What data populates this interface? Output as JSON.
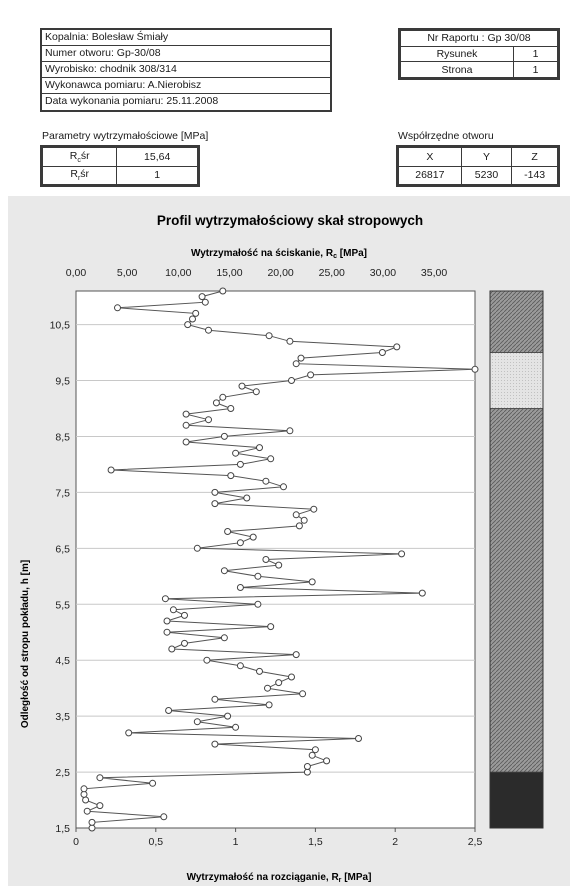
{
  "header": {
    "info_rows": [
      "Kopalnia: Bolesław Śmiały",
      "Numer otworu: Gp-30/08",
      "Wyrobisko: chodnik 308/314",
      "Wykonawca pomiaru: A.Nierobisz",
      "Data wykonania pomiaru: 25.11.2008"
    ],
    "report": {
      "title": "Nr Raportu : Gp 30/08",
      "rows": [
        {
          "label": "Rysunek",
          "value": "1"
        },
        {
          "label": "Strona",
          "value": "1"
        }
      ]
    },
    "params": {
      "caption": "Parametry wytrzymałościowe [MPa]",
      "rows": [
        {
          "symbol": "R",
          "sub": "c",
          "suffix": "śr",
          "value": "15,64"
        },
        {
          "symbol": "R",
          "sub": "r",
          "suffix": "śr",
          "value": "1"
        }
      ]
    },
    "coords": {
      "caption": "Współrzędne otworu",
      "headers": [
        "X",
        "Y",
        "Z"
      ],
      "values": [
        "26817",
        "5230",
        "-143"
      ]
    }
  },
  "chart_data": {
    "type": "line",
    "title": "Profil wytrzymałościowy skał stropowych",
    "top_axis": {
      "label": "Wytrzymałość na ściskanie, R",
      "label_sub": "c",
      "label_unit": "[MPa]",
      "range": [
        0,
        39
      ],
      "ticks": [
        "0,00",
        "5,00",
        "10,00",
        "15,00",
        "20,00",
        "25,00",
        "30,00",
        "35,00"
      ]
    },
    "bottom_axis": {
      "label": "Wytrzymałość na rozciąganie, R",
      "label_sub": "r",
      "label_unit": "[MPa]",
      "range": [
        0,
        2.5
      ],
      "ticks": [
        "0",
        "0,5",
        "1",
        "1,5",
        "2",
        "2,5"
      ]
    },
    "y_axis": {
      "label": "Odległość od stropu pokładu, h [m]",
      "range": [
        1.5,
        11.1
      ],
      "ticks": [
        "1,5",
        "2,5",
        "3,5",
        "4,5",
        "5,5",
        "6,5",
        "7,5",
        "8,5",
        "9,5",
        "10,5"
      ]
    },
    "grid": true,
    "series": [
      {
        "unit": "MPa (R_r, bottom axis)",
        "points": [
          [
            0.1,
            1.5
          ],
          [
            0.1,
            1.6
          ],
          [
            0.55,
            1.7
          ],
          [
            0.07,
            1.8
          ],
          [
            0.15,
            1.9
          ],
          [
            0.06,
            2.0
          ],
          [
            0.05,
            2.1
          ],
          [
            0.05,
            2.2
          ],
          [
            0.48,
            2.3
          ],
          [
            0.15,
            2.4
          ],
          [
            1.45,
            2.5
          ],
          [
            1.45,
            2.6
          ],
          [
            1.57,
            2.7
          ],
          [
            1.48,
            2.8
          ],
          [
            1.5,
            2.9
          ],
          [
            0.87,
            3.0
          ],
          [
            1.77,
            3.1
          ],
          [
            0.33,
            3.2
          ],
          [
            1.0,
            3.3
          ],
          [
            0.76,
            3.4
          ],
          [
            0.95,
            3.5
          ],
          [
            0.58,
            3.6
          ],
          [
            1.21,
            3.7
          ],
          [
            0.87,
            3.8
          ],
          [
            1.42,
            3.9
          ],
          [
            1.2,
            4.0
          ],
          [
            1.27,
            4.1
          ],
          [
            1.35,
            4.2
          ],
          [
            1.15,
            4.3
          ],
          [
            1.03,
            4.4
          ],
          [
            0.82,
            4.5
          ],
          [
            1.38,
            4.6
          ],
          [
            0.6,
            4.7
          ],
          [
            0.68,
            4.8
          ],
          [
            0.93,
            4.9
          ],
          [
            0.57,
            5.0
          ],
          [
            1.22,
            5.1
          ],
          [
            0.57,
            5.2
          ],
          [
            0.68,
            5.3
          ],
          [
            0.61,
            5.4
          ],
          [
            1.14,
            5.5
          ],
          [
            0.56,
            5.6
          ],
          [
            2.17,
            5.7
          ],
          [
            1.03,
            5.8
          ],
          [
            1.48,
            5.9
          ],
          [
            1.14,
            6.0
          ],
          [
            0.93,
            6.1
          ],
          [
            1.27,
            6.2
          ],
          [
            1.19,
            6.3
          ],
          [
            2.04,
            6.4
          ],
          [
            0.76,
            6.5
          ],
          [
            1.03,
            6.6
          ],
          [
            1.11,
            6.7
          ],
          [
            0.95,
            6.8
          ],
          [
            1.4,
            6.9
          ],
          [
            1.43,
            7.0
          ],
          [
            1.38,
            7.1
          ],
          [
            1.49,
            7.2
          ],
          [
            0.87,
            7.3
          ],
          [
            1.07,
            7.4
          ],
          [
            0.87,
            7.5
          ],
          [
            1.3,
            7.6
          ],
          [
            1.19,
            7.7
          ],
          [
            0.97,
            7.8
          ],
          [
            0.22,
            7.9
          ],
          [
            1.03,
            8.0
          ],
          [
            1.22,
            8.1
          ],
          [
            1.0,
            8.2
          ],
          [
            1.15,
            8.3
          ],
          [
            0.69,
            8.4
          ],
          [
            0.93,
            8.5
          ],
          [
            1.34,
            8.6
          ],
          [
            0.69,
            8.7
          ],
          [
            0.83,
            8.8
          ],
          [
            0.69,
            8.9
          ],
          [
            0.97,
            9.0
          ],
          [
            0.88,
            9.1
          ],
          [
            0.92,
            9.2
          ],
          [
            1.13,
            9.3
          ],
          [
            1.04,
            9.4
          ],
          [
            1.35,
            9.5
          ],
          [
            1.47,
            9.6
          ],
          [
            2.5,
            9.7
          ],
          [
            1.38,
            9.8
          ],
          [
            1.41,
            9.9
          ],
          [
            1.92,
            10.0
          ],
          [
            2.01,
            10.1
          ],
          [
            1.34,
            10.2
          ],
          [
            1.21,
            10.3
          ],
          [
            0.83,
            10.4
          ],
          [
            0.7,
            10.5
          ],
          [
            0.73,
            10.6
          ],
          [
            0.75,
            10.7
          ],
          [
            0.26,
            10.8
          ],
          [
            0.81,
            10.9
          ],
          [
            0.79,
            11.0
          ],
          [
            0.92,
            11.1
          ]
        ]
      }
    ],
    "lithology": [
      {
        "from": 1.5,
        "to": 2.5,
        "pattern": "dark",
        "color": "#2b2b2b"
      },
      {
        "from": 2.5,
        "to": 9.0,
        "pattern": "hatched",
        "color": "#8a8a8a"
      },
      {
        "from": 9.0,
        "to": 10.0,
        "pattern": "light",
        "color": "#d6d6d6"
      },
      {
        "from": 10.0,
        "to": 11.1,
        "pattern": "hatched",
        "color": "#8a8a8a"
      }
    ]
  }
}
